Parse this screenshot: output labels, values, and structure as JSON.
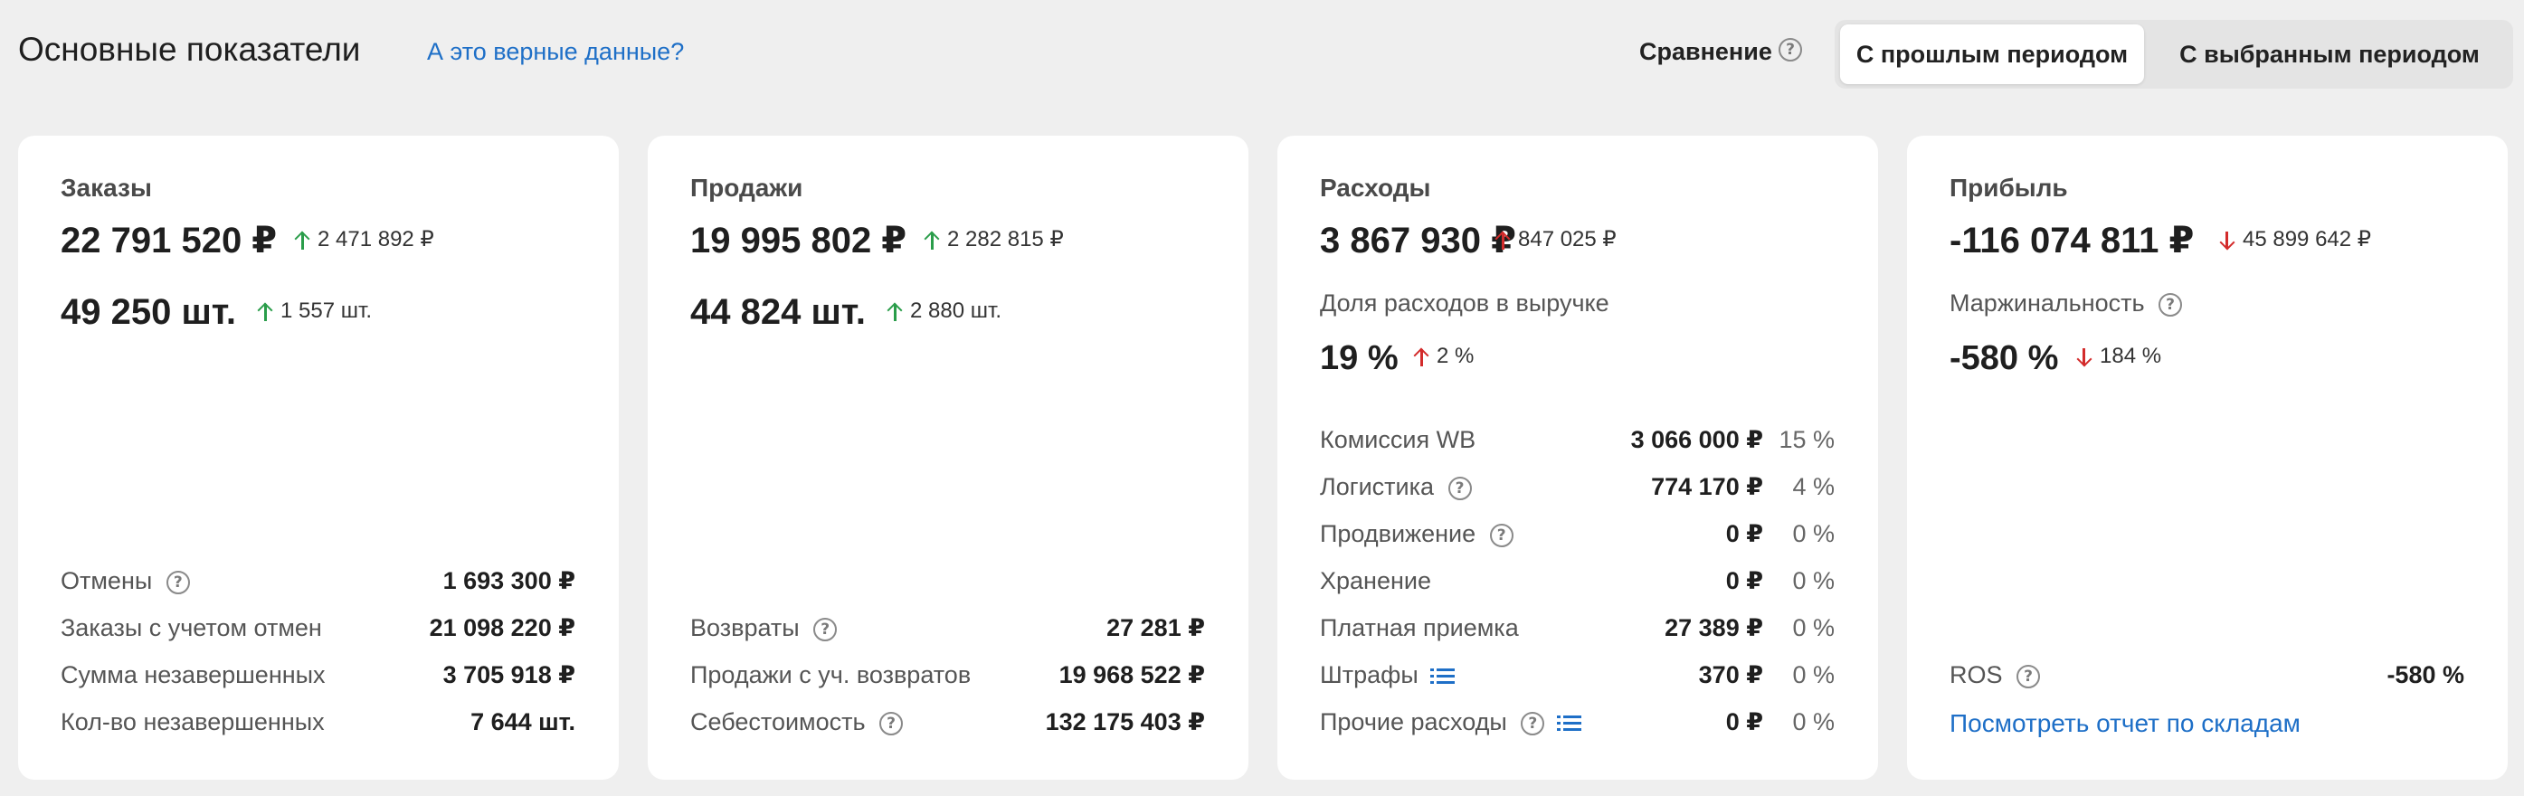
{
  "header": {
    "title": "Основные показатели",
    "verify_link": "А это верные данные?",
    "compare_label": "Сравнение",
    "toggle": {
      "prev": "С прошлым периодом",
      "selected": "С выбранным периодом",
      "active": "prev"
    }
  },
  "orders": {
    "title": "Заказы",
    "amount": "22 791 520 ₽",
    "amount_delta": "2 471 892 ₽",
    "qty": "49 250 шт.",
    "qty_delta": "1 557 шт.",
    "rows": [
      {
        "label": "Отмены",
        "value": "1 693 300 ₽"
      },
      {
        "label": "Заказы с учетом отмен",
        "value": "21 098 220 ₽"
      },
      {
        "label": "Сумма незавершенных",
        "value": "3 705 918 ₽"
      },
      {
        "label": "Кол-во незавершенных",
        "value": "7 644 шт."
      }
    ]
  },
  "sales": {
    "title": "Продажи",
    "amount": "19 995 802 ₽",
    "amount_delta": "2 282 815 ₽",
    "qty": "44 824 шт.",
    "qty_delta": "2 880 шт.",
    "rows": [
      {
        "label": "Возвраты",
        "value": "27 281 ₽"
      },
      {
        "label": "Продажи с уч. возвратов",
        "value": "19 968 522 ₽"
      },
      {
        "label": "Себестоимость",
        "value": "132 175 403 ₽"
      }
    ]
  },
  "expenses": {
    "title": "Расходы",
    "amount": "3 867 930 ₽",
    "amount_delta": "847 025 ₽",
    "share_label": "Доля расходов в выручке",
    "share": "19 %",
    "share_delta": "2 %",
    "rows": [
      {
        "label": "Комиссия WB",
        "value": "3 066 000 ₽",
        "pct": "15 %"
      },
      {
        "label": "Логистика",
        "value": "774 170 ₽",
        "pct": "4 %"
      },
      {
        "label": "Продвижение",
        "value": "0 ₽",
        "pct": "0 %"
      },
      {
        "label": "Хранение",
        "value": "0 ₽",
        "pct": "0 %"
      },
      {
        "label": "Платная приемка",
        "value": "27 389 ₽",
        "pct": "0 %"
      },
      {
        "label": "Штрафы",
        "value": "370 ₽",
        "pct": "0 %"
      },
      {
        "label": "Прочие расходы",
        "value": "0 ₽",
        "pct": "0 %"
      }
    ]
  },
  "profit": {
    "title": "Прибыль",
    "amount": "-116 074 811 ₽",
    "amount_delta": "45 899 642 ₽",
    "margin_label": "Маржинальность",
    "margin": "-580 %",
    "margin_delta": "184 %",
    "ros_label": "ROS",
    "ros_value": "-580 %",
    "report_link": "Посмотреть отчет по складам"
  },
  "colors": {
    "up": "#2a9d4a",
    "down": "#d32b2b",
    "link": "#1e6fc7",
    "background": "#efefef",
    "card": "#ffffff"
  }
}
